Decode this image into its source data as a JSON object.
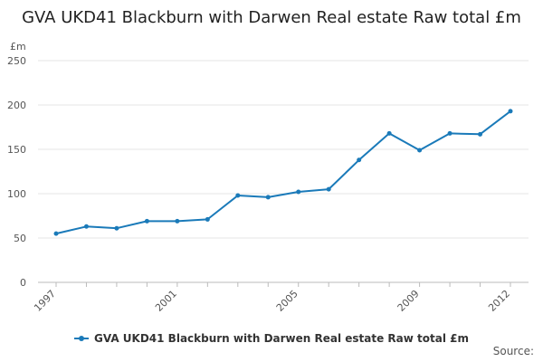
{
  "chart_data": {
    "type": "line",
    "title": "GVA UKD41 Blackburn with Darwen Real estate Raw total £m",
    "ylabel": "£m",
    "xlabel": "",
    "x": [
      1997,
      1998,
      1999,
      2000,
      2001,
      2002,
      2003,
      2004,
      2005,
      2006,
      2007,
      2008,
      2009,
      2010,
      2011,
      2012
    ],
    "x_tick_labels": [
      "1997",
      "2001",
      "2005",
      "2009",
      "2012"
    ],
    "y_ticks": [
      0,
      50,
      100,
      150,
      200,
      250
    ],
    "ylim": [
      0,
      250
    ],
    "grid": true,
    "legend_position": "bottom",
    "series": [
      {
        "name": "GVA UKD41 Blackburn with Darwen Real estate Raw total £m",
        "color": "#1a7ab9",
        "values": [
          55,
          63,
          61,
          69,
          69,
          71,
          98,
          96,
          102,
          105,
          138,
          168,
          149,
          168,
          167,
          193
        ]
      }
    ]
  },
  "footer": {
    "source": "Source:"
  }
}
